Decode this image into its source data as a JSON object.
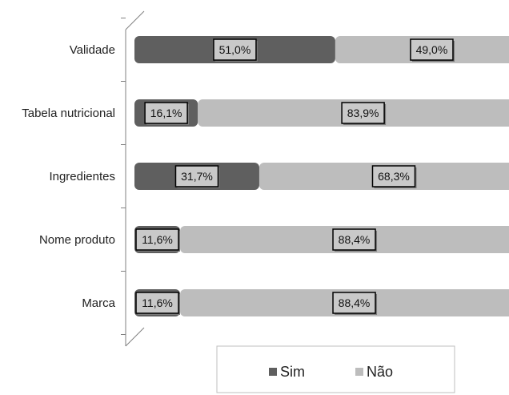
{
  "chart_data": {
    "type": "bar",
    "orientation": "horizontal",
    "stacked": "percent",
    "categories": [
      "Validade",
      "Tabela nutricional",
      "Ingredientes",
      "Nome produto",
      "Marca"
    ],
    "series": [
      {
        "name": "Sim",
        "values": [
          51.0,
          16.1,
          31.7,
          11.6,
          11.6
        ],
        "labels": [
          "51,0%",
          "16,1%",
          "31,7%",
          "11,6%",
          "11,6%"
        ],
        "color": "#5f5f5f"
      },
      {
        "name": "Não",
        "values": [
          49.0,
          83.9,
          68.3,
          88.4,
          88.4
        ],
        "labels": [
          "49,0%",
          "83,9%",
          "68,3%",
          "88,4%",
          "88,4%"
        ],
        "color": "#bdbdbd"
      }
    ],
    "xlim": [
      0,
      100
    ],
    "grid": false,
    "legend_position": "bottom"
  }
}
